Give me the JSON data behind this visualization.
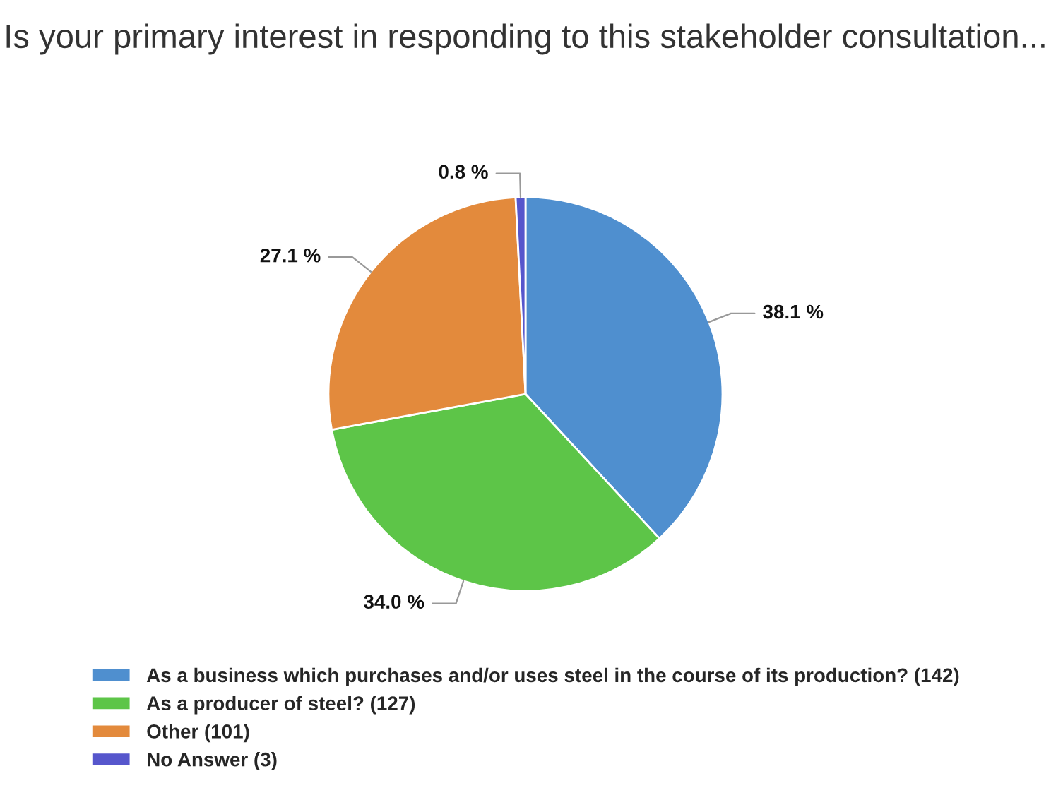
{
  "chart_data": {
    "type": "pie",
    "title": "Is your primary interest in responding to this stakeholder consultation...",
    "categories": [
      "As a business which purchases and/or uses steel in the course of its production? (142)",
      "As a producer of steel? (127)",
      "Other (101)",
      "No Answer (3)"
    ],
    "values": [
      38.1,
      34.0,
      27.1,
      0.8
    ],
    "value_labels": [
      "38.1 %",
      "34.0 %",
      "27.1 %",
      "0.8 %"
    ],
    "colors": [
      "#4f8fcf",
      "#5dc548",
      "#e38a3c",
      "#5656cc"
    ],
    "legend": "bottom"
  }
}
